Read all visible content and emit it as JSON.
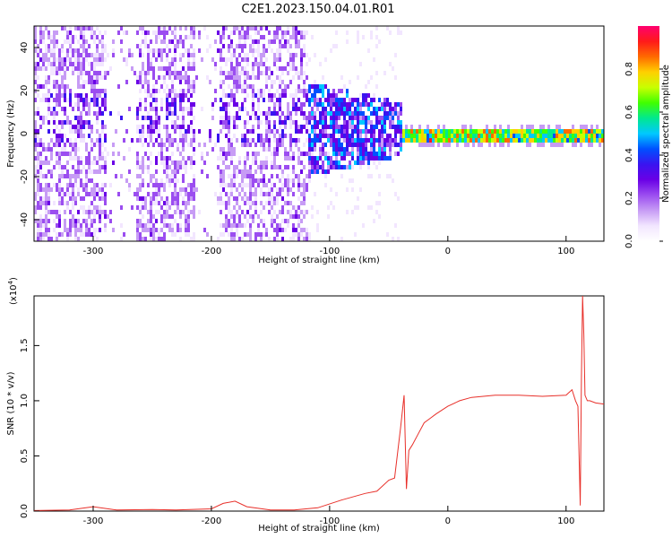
{
  "title": "C2E1.2023.150.04.01.R01",
  "colors": {
    "snr_line": "#e8302a",
    "colormap": [
      "#ffffff",
      "#f2e6ff",
      "#c79cf5",
      "#9b4df0",
      "#6a00e6",
      "#3a14f0",
      "#0050ff",
      "#00c8ff",
      "#00e890",
      "#40ff00",
      "#c8ff00",
      "#ffd000",
      "#ff6a00",
      "#ff1a1a",
      "#ff0070"
    ]
  },
  "chart_data": [
    {
      "type": "heatmap",
      "xlabel": "Height of straight line (km)",
      "ylabel": "Frequency (Hz)",
      "xlim": [
        -350,
        132
      ],
      "ylim": [
        -50,
        50
      ],
      "xticks": [
        -300,
        -200,
        -100,
        0,
        100
      ],
      "yticks": [
        -40,
        -20,
        0,
        20,
        40
      ],
      "colorbar": {
        "label": "Normalized spectral amplitude",
        "range": [
          0.0,
          1.0
        ],
        "ticks": [
          "0.0",
          "0.2",
          "0.4",
          "0.6",
          "0.8"
        ]
      },
      "description_bands": [
        {
          "x": [
            -350,
            -120
          ],
          "frequency_spread": [
            -50,
            50
          ],
          "amplitude": [
            0.05,
            0.25
          ]
        },
        {
          "x": [
            -120,
            -40
          ],
          "frequency_center": 3,
          "frequency_spread": [
            -15,
            15
          ],
          "amplitude": [
            0.2,
            0.45
          ]
        },
        {
          "x": [
            -40,
            132
          ],
          "frequency_center": 0,
          "frequency_spread": [
            -2,
            3
          ],
          "amplitude": [
            0.45,
            0.95
          ]
        }
      ]
    },
    {
      "type": "line",
      "xlabel": "Height of straight line (km)",
      "ylabel": "SNR (10 * v/v)",
      "scale_label": "(x10",
      "scale_exp": "4",
      "xlim": [
        -350,
        132
      ],
      "ylim": [
        0,
        1.95
      ],
      "xticks": [
        -300,
        -200,
        -100,
        0,
        100
      ],
      "yticks": [
        "0.0",
        "0.5",
        "1.0",
        "1.5"
      ],
      "series": [
        {
          "x": [
            -350,
            -320,
            -300,
            -280,
            -250,
            -230,
            -200,
            -190,
            -180,
            -170,
            -150,
            -130,
            -110,
            -90,
            -70,
            -60,
            -50,
            -45,
            -40,
            -37,
            -35,
            -33,
            -30,
            -25,
            -20,
            -15,
            -10,
            0,
            10,
            20,
            30,
            40,
            60,
            80,
            100,
            105,
            108,
            110,
            112,
            113,
            114,
            115,
            116,
            118,
            120,
            125,
            132
          ],
          "values": [
            0.005,
            0.01,
            0.04,
            0.01,
            0.015,
            0.01,
            0.02,
            0.07,
            0.09,
            0.04,
            0.01,
            0.01,
            0.03,
            0.1,
            0.16,
            0.18,
            0.28,
            0.3,
            0.75,
            1.05,
            0.2,
            0.55,
            0.6,
            0.7,
            0.8,
            0.84,
            0.88,
            0.95,
            1.0,
            1.03,
            1.04,
            1.05,
            1.05,
            1.04,
            1.05,
            1.1,
            1.0,
            0.95,
            0.05,
            1.2,
            1.95,
            1.6,
            1.05,
            1.0,
            1.0,
            0.98,
            0.97
          ]
        }
      ]
    }
  ]
}
